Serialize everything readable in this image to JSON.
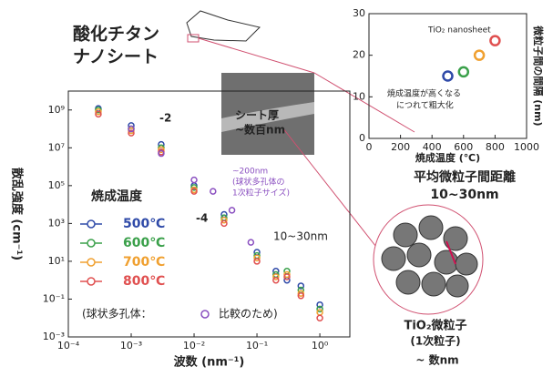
{
  "chart_data": [
    {
      "type": "scatter",
      "log": true,
      "xlabel": "波数 (nm⁻¹)",
      "ylabel": "散乱強度 (cm⁻¹)",
      "xlim": [
        0.0001,
        3
      ],
      "ylim": [
        0.001,
        10000000000
      ],
      "xticks": [
        {
          "value": 0.0001,
          "label": "10⁻⁴"
        },
        {
          "value": 0.001,
          "label": "10⁻³"
        },
        {
          "value": 0.01,
          "label": "10⁻²"
        },
        {
          "value": 0.1,
          "label": "10⁻¹"
        },
        {
          "value": 1,
          "label": "10⁰"
        }
      ],
      "yticks": [
        {
          "value": 0.001,
          "label": "10⁻³"
        },
        {
          "value": 0.1,
          "label": "10⁻¹"
        },
        {
          "value": 10,
          "label": "10¹"
        },
        {
          "value": 1000,
          "label": "10³"
        },
        {
          "value": 100000,
          "label": "10⁵"
        },
        {
          "value": 10000000,
          "label": "10⁷"
        },
        {
          "value": 1000000000,
          "label": "10⁹"
        }
      ],
      "legend_title": "焼成温度",
      "series": [
        {
          "name": "500℃",
          "color": "#2f4aa8",
          "x": [
            0.0003,
            0.001,
            0.003,
            0.01,
            0.03,
            0.1,
            0.2,
            0.3,
            0.5,
            1
          ],
          "values": [
            1200000000,
            150000000,
            15000000,
            100000,
            3000,
            30,
            3,
            1,
            0.5,
            0.05
          ]
        },
        {
          "name": "600℃",
          "color": "#3aa04a",
          "x": [
            0.0003,
            0.001,
            0.003,
            0.01,
            0.03,
            0.1,
            0.2,
            0.3,
            0.5,
            1
          ],
          "values": [
            1000000000,
            100000000,
            10000000,
            80000,
            2000,
            20,
            2,
            3,
            0.3,
            0.03
          ]
        },
        {
          "name": "700℃",
          "color": "#f0a030",
          "x": [
            0.0003,
            0.001,
            0.003,
            0.01,
            0.03,
            0.1,
            0.2,
            0.3,
            0.5,
            1
          ],
          "values": [
            800000000,
            80000000,
            8000000,
            60000,
            1500,
            15,
            1.5,
            2,
            0.2,
            0.02
          ]
        },
        {
          "name": "800℃",
          "color": "#e05050",
          "x": [
            0.0003,
            0.001,
            0.003,
            0.01,
            0.03,
            0.1,
            0.2,
            0.3,
            0.5,
            1
          ],
          "values": [
            600000000,
            60000000,
            6000000,
            50000,
            1000,
            10,
            1,
            1.5,
            0.15,
            0.01
          ]
        },
        {
          "name": "(球状多孔体：",
          "color": "#8a4fc0",
          "x": [
            0.001,
            0.003,
            0.01,
            0.02,
            0.04,
            0.08
          ],
          "values": [
            100000000,
            5000000,
            200000,
            50000,
            5000,
            100
          ]
        }
      ],
      "annotations": [
        "-2",
        "-4",
        "シート厚",
        "~数百nm",
        "~200nm",
        "(球状多孔体の",
        "1次粒子サイズ)",
        "10~30nm",
        "比較のため)"
      ]
    },
    {
      "type": "scatter",
      "log": false,
      "xlabel": "焼成温度 (℃)",
      "ylabel": "微粒子間の間隔 (nm)",
      "xlim": [
        0,
        1000
      ],
      "ylim": [
        0,
        30
      ],
      "xticks": [
        0,
        200,
        400,
        600,
        800,
        1000
      ],
      "yticks": [
        0,
        10,
        20,
        30
      ],
      "x": [
        500,
        600,
        700,
        800
      ],
      "values": [
        15,
        16,
        20,
        23.5
      ],
      "colors": [
        "#2f4aa8",
        "#3aa04a",
        "#f0a030",
        "#e05050"
      ],
      "annotations": [
        "TiO₂ nanosheet",
        "焼成温度が高くなる",
        "につれて粗大化"
      ]
    }
  ],
  "labels": {
    "material": [
      "酸化チタン",
      "ナノシート"
    ],
    "distance": [
      "平均微粒子間距離",
      "10~30nm"
    ],
    "particle": [
      "TiO₂微粒子",
      "(1次粒子)",
      "~ 数nm"
    ]
  }
}
